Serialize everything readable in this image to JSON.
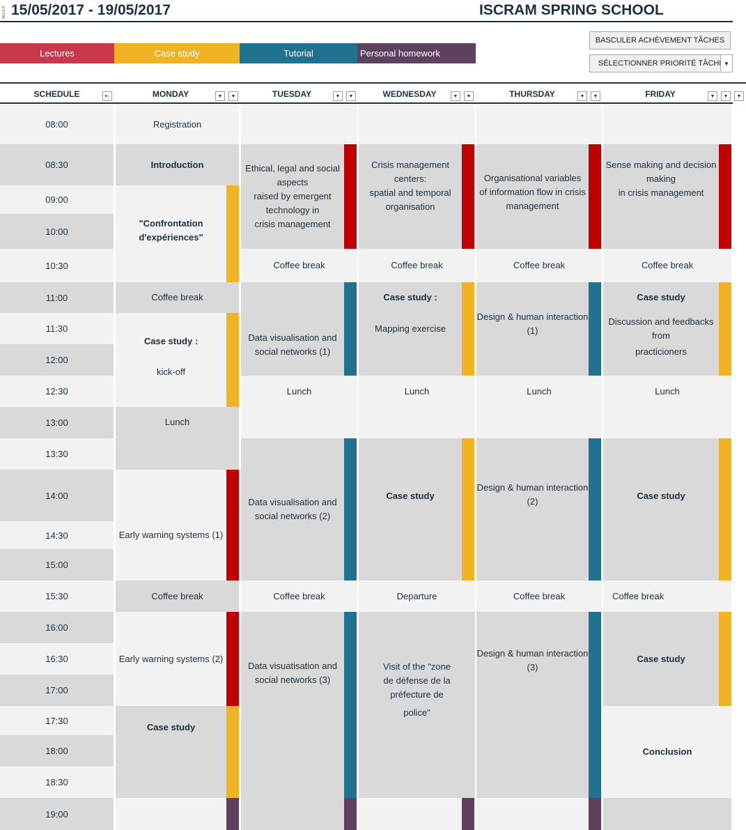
{
  "header": {
    "week_label": "WEEK",
    "date_range": "15/05/2017 - 19/05/2017",
    "title": "ISCRAM SPRING SCHOOL"
  },
  "legend": {
    "lectures": "Lectures",
    "case_study": "Case study",
    "tutorial": "Tutorial",
    "homework": "Personal homework"
  },
  "buttons": {
    "toggle": "BASCULER ACHÈVEMENT TÂCHES",
    "priority": "SÉLECTIONNER PRIORITÉ TÂCHES"
  },
  "columns": {
    "schedule": "SCHEDULE",
    "monday": "MONDAY",
    "tuesday": "TUESDAY",
    "wednesday": "WEDNESDAY",
    "thursday": "THURSDAY",
    "friday": "FRIDAY"
  },
  "times": [
    "08:00",
    "08:30",
    "09:00",
    "10:00",
    "10:30",
    "11:00",
    "11:30",
    "12:00",
    "12:30",
    "13:00",
    "13:30",
    "14:00",
    "14:30",
    "15:00",
    "15:30",
    "16:00",
    "16:30",
    "17:00",
    "17:30",
    "18:00",
    "18:30",
    "19:00"
  ],
  "monday": {
    "registration": "Registration",
    "introduction": "Introduction",
    "confrontation_1": "\"Confrontation",
    "confrontation_2": "d'expériences\"",
    "coffee_1": "Coffee break",
    "case_kickoff_title": "Case study :",
    "case_kickoff_sub": "kick-off",
    "lunch": "Lunch",
    "early_warning_1": "Early warning systems (1)",
    "coffee_2": "Coffee break",
    "early_warning_2": "Early warning systems (2)",
    "case_study": "Case study"
  },
  "tuesday": {
    "ethics": [
      "Ethical, legal and social",
      "aspects",
      "raised by emergent",
      "technology in",
      "crisis management"
    ],
    "coffee_1": "Coffee break",
    "dataviz_1": [
      "Data visualisation and",
      "social networks (1)"
    ],
    "lunch": "Lunch",
    "dataviz_2": [
      "Data visualisation and",
      "social networks (2)"
    ],
    "coffee_2": "Coffee break",
    "dataviz_3": [
      "Data visuatisation and",
      "social networks (3)"
    ]
  },
  "wednesday": {
    "crisis_centers": [
      "Crisis management",
      "centers:",
      "spatial and temporal",
      "organisation"
    ],
    "coffee_1": "Coffee break",
    "case_title": "Case study :",
    "case_sub": "Mapping exercise",
    "lunch": "Lunch",
    "case_study": "Case study",
    "departure": "Departure",
    "visit": [
      "Visit of the \"zone",
      "de défense de la",
      "préfecture de",
      "police\""
    ]
  },
  "thursday": {
    "org_vars": [
      "Organisational variables",
      "of information flow in crisis",
      "management"
    ],
    "coffee_1": "Coffee break",
    "design_1": [
      "Design & human interaction",
      "(1)"
    ],
    "lunch": "Lunch",
    "design_2": [
      "Design & human interaction",
      "(2)"
    ],
    "coffee_2": "Coffee break",
    "design_3": [
      "Design & human interaction",
      "(3)"
    ]
  },
  "friday": {
    "sense_making": [
      "Sense making and decision",
      "making",
      "in crisis management"
    ],
    "coffee_1": "Coffee break",
    "case_title": "Case study",
    "case_lines": [
      "Discussion and feedbacks",
      "from",
      "practicioners"
    ],
    "lunch": "Lunch",
    "case_study_2": "Case study",
    "coffee_2": "Coffee break",
    "case_study_3": "Case study",
    "conclusion": "Conclusion"
  },
  "colors": {
    "lectures": "#c8374a",
    "case_study": "#f0b323",
    "tutorial": "#1f7391",
    "homework": "#60405f",
    "lecture_bar": "#c00000",
    "cell_dark": "#d9d9d9",
    "cell_light": "#f2f2f2",
    "title": "#1c3140"
  }
}
